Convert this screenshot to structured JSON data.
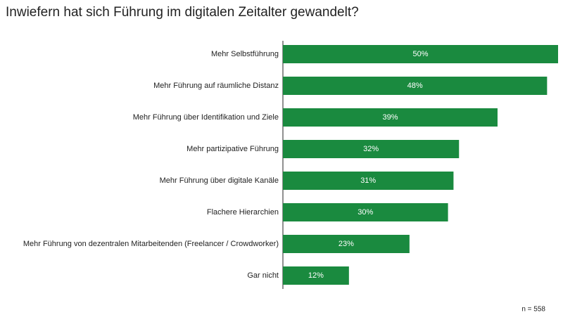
{
  "chart_data": {
    "type": "bar",
    "orientation": "horizontal",
    "title": "Inwiefern hat sich Führung im digitalen Zeitalter gewandelt?",
    "categories": [
      "Mehr Selbstführung",
      "Mehr Führung auf räumliche Distanz",
      "Mehr Führung über Identifikation und Ziele",
      "Mehr partizipative Führung",
      "Mehr Führung über digitale Kanäle",
      "Flachere Hierarchien",
      "Mehr Führung von dezentralen Mitarbeitenden (Freelancer / Crowdworker)",
      "Gar nicht"
    ],
    "values": [
      50,
      48,
      39,
      32,
      31,
      30,
      23,
      12
    ],
    "value_labels": [
      "50%",
      "48%",
      "39%",
      "32%",
      "31%",
      "30%",
      "23%",
      "12%"
    ],
    "color": "#1a8a3f",
    "annotation": "n = 558"
  }
}
